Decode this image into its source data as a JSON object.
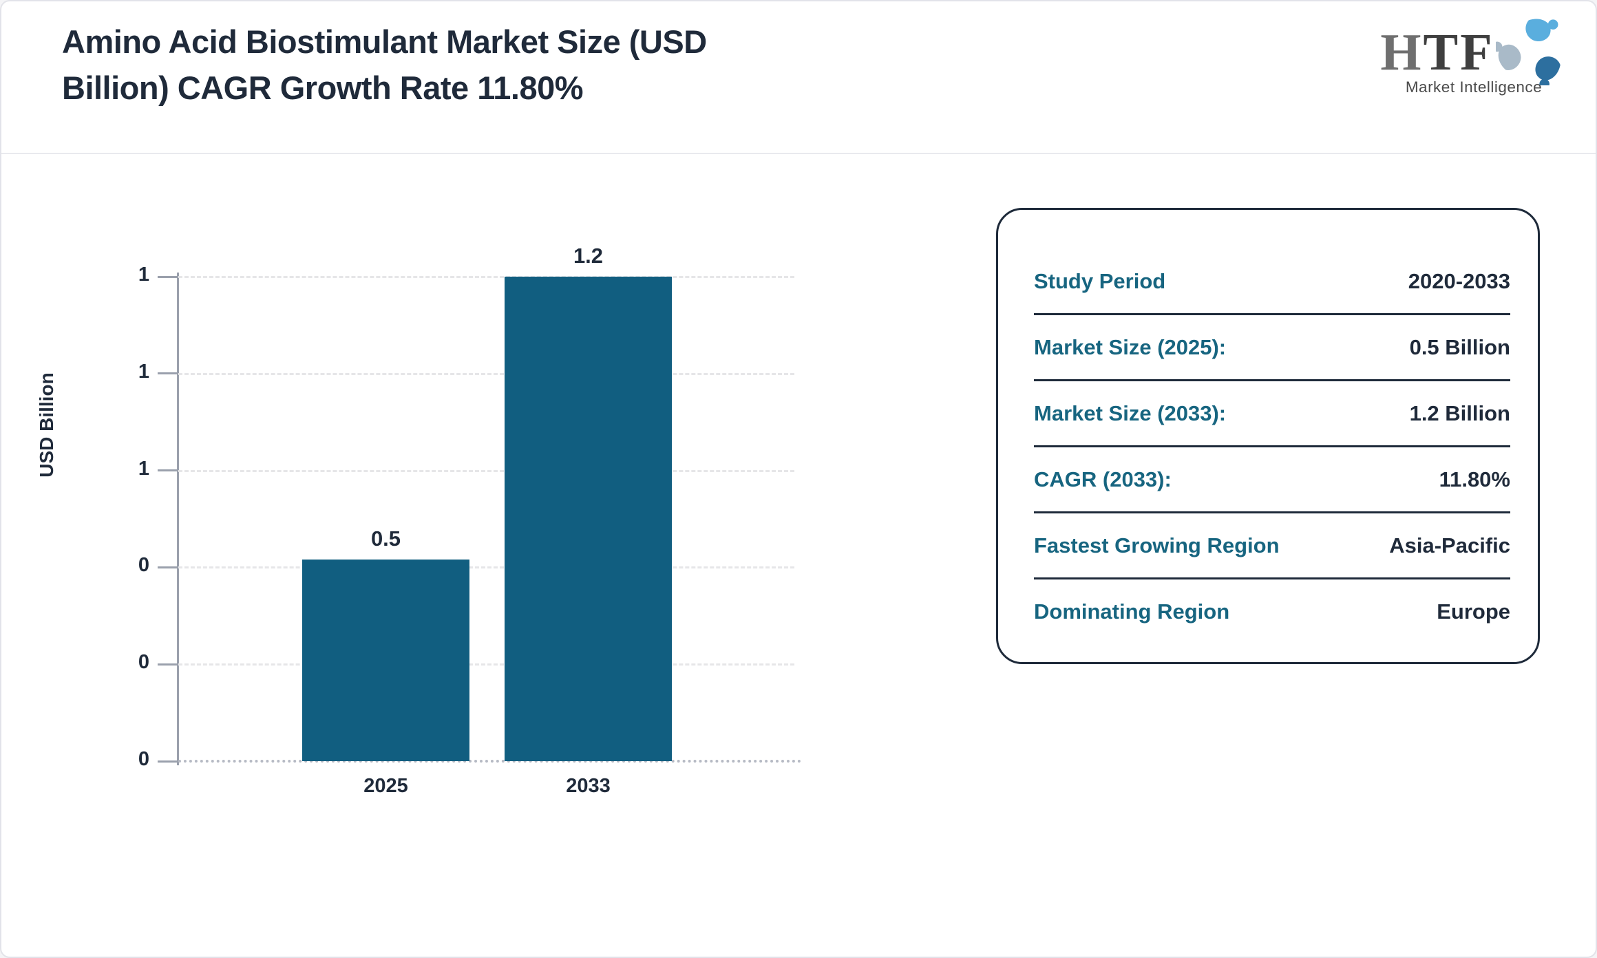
{
  "header": {
    "title_line1": "Amino Acid Biostimulant Market Size (USD",
    "title_line2": "Billion) CAGR Growth Rate 11.80%",
    "logo": {
      "text_h": "H",
      "text_tf": "TF",
      "subtext": "Market Intelligence"
    }
  },
  "chart_data": {
    "type": "bar",
    "title": "Amino Acid Biostimulant Market Size (USD Billion) CAGR Growth Rate 11.80%",
    "categories": [
      "2025",
      "2033"
    ],
    "values": [
      0.5,
      1.2
    ],
    "bar_labels": [
      "0.5",
      "1.2"
    ],
    "xlabel": "",
    "ylabel": "USD Billion",
    "ylim": [
      0,
      1.2
    ],
    "ytick_labels_top_to_bottom": [
      "1",
      "1",
      "1",
      "0",
      "0",
      "0"
    ],
    "grid": true,
    "legend": false,
    "bar_color": "#115e80"
  },
  "info_panel": {
    "rows": [
      {
        "label": "Study Period",
        "value": "2020-2033"
      },
      {
        "label": "Market Size (2025):",
        "value": "0.5 Billion"
      },
      {
        "label": "Market Size (2033):",
        "value": "1.2 Billion"
      },
      {
        "label": "CAGR (2033):",
        "value": "11.80%"
      },
      {
        "label": "Fastest Growing Region",
        "value": "Asia-Pacific"
      },
      {
        "label": "Dominating Region",
        "value": "Europe"
      }
    ]
  },
  "colors": {
    "bar": "#115e80",
    "label_teal": "#176580",
    "navy": "#1f2a3a",
    "axis_gray": "#9aa0ac",
    "logo_blue_light": "#5aaede",
    "logo_blue_dark": "#2d6f9f",
    "logo_gray_blue": "#a9bac8"
  }
}
